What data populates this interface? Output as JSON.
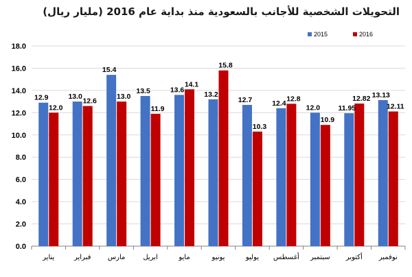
{
  "chart_data": {
    "type": "bar",
    "title": "التحويلات الشخصية للأجانب بالسعودية منذ بداية عام 2016 (مليار ريال)",
    "categories": [
      "يناير",
      "فبراير",
      "مارس",
      "ابريل",
      "مايو",
      "يونيو",
      "يوليو",
      "أغسطس",
      "سبتمبر",
      "أكتوبر",
      "نوفمبر"
    ],
    "series": [
      {
        "name": "2015",
        "color": "#4472c4",
        "values": [
          12.9,
          13.0,
          15.4,
          13.5,
          13.6,
          13.2,
          12.7,
          12.4,
          12.0,
          11.95,
          13.13
        ],
        "labels": [
          "12.9",
          "13.0",
          "15.4",
          "13.5",
          "13.6",
          "13.2",
          "12.7",
          "12.4",
          "12.0",
          "11.95",
          "13.13"
        ]
      },
      {
        "name": "2016",
        "color": "#c00000",
        "values": [
          12.0,
          12.6,
          13.0,
          11.9,
          14.1,
          15.8,
          10.3,
          12.8,
          10.9,
          12.82,
          12.11
        ],
        "labels": [
          "12.0",
          "12.6",
          "13.0",
          "11.9",
          "14.1",
          "15.8",
          "10.3",
          "12.8",
          "10.9",
          "12.82",
          "12.11"
        ]
      }
    ],
    "ylim": [
      0,
      18
    ],
    "yticks": [
      "0.0",
      "2.0",
      "4.0",
      "6.0",
      "8.0",
      "10.0",
      "12.0",
      "14.0",
      "16.0",
      "18.0"
    ],
    "grid": true,
    "legend_position": "top-right"
  }
}
